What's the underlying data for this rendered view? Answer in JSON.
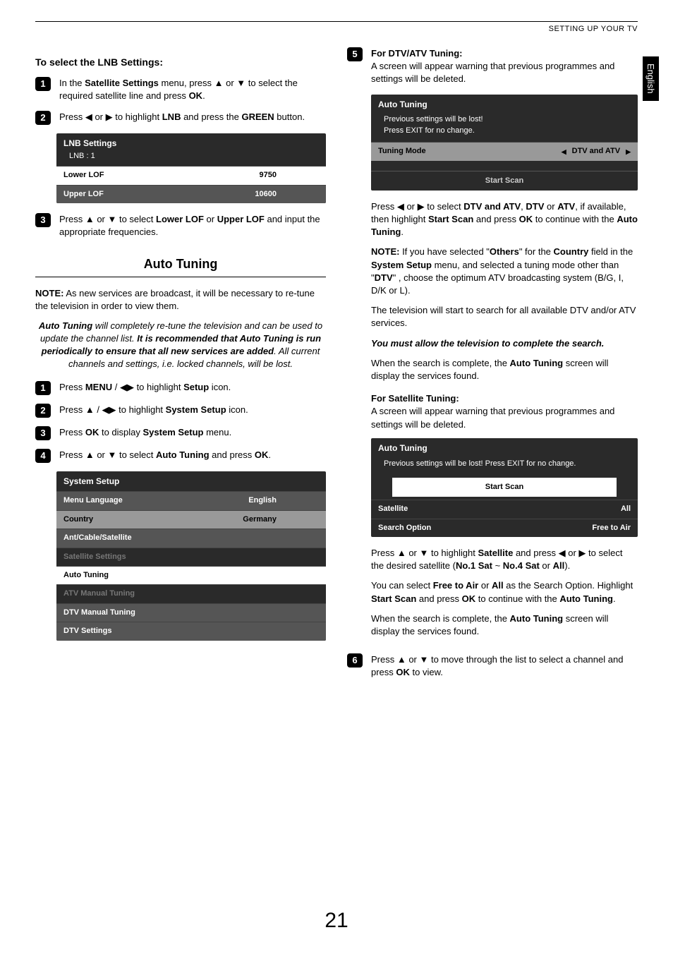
{
  "header": {
    "section": "SETTING UP YOUR TV",
    "lang_tab": "English"
  },
  "page_number": "21",
  "left": {
    "lnb_heading": "To select the LNB Settings:",
    "step1": {
      "pre": "In the ",
      "b1": "Satellite Settings",
      "mid": " menu, press ▲ or ▼ to select the required satellite line and press ",
      "b2": "OK",
      "post": "."
    },
    "step2": {
      "pre": "Press ◀ or ▶ to highlight ",
      "b1": "LNB",
      "mid": " and press the ",
      "b2": "GREEN",
      "post": " button."
    },
    "lnb_osd": {
      "title": "LNB Settings",
      "sub": "LNB : 1",
      "rows": [
        {
          "label": "Lower LOF",
          "value": "9750",
          "style": "white"
        },
        {
          "label": "Upper LOF",
          "value": "10600",
          "style": "dark"
        }
      ]
    },
    "step3": {
      "pre": "Press ▲ or ▼ to select ",
      "b1": "Lower LOF",
      "mid": " or ",
      "b2": "Upper LOF",
      "post": " and input the appropriate frequencies."
    },
    "auto_title": "Auto Tuning",
    "note": {
      "label": "NOTE:",
      "text": " As new services are broadcast, it will be necessary to re-tune the television in order to view them."
    },
    "italic_block": {
      "a": "Auto Tuning",
      "b": " will completely re-tune the television and can be used to update the channel list. ",
      "c": "It is recommended that Auto Tuning is run periodically to ensure that all new services are added",
      "d": ". All current channels and settings, i.e. locked channels, will be lost."
    },
    "at_step1": {
      "pre": "Press ",
      "b1": "MENU",
      "mid": " / ◀▶ to highlight ",
      "b2": "Setup",
      "post": " icon."
    },
    "at_step2": {
      "pre": "Press ▲ / ◀▶ to highlight ",
      "b1": "System Setup",
      "post": " icon."
    },
    "at_step3": {
      "pre": "Press ",
      "b1": "OK",
      "mid": " to display ",
      "b2": "System Setup",
      "post": " menu."
    },
    "at_step4": {
      "pre": "Press ▲ or ▼ to select ",
      "b1": "Auto Tuning",
      "mid": " and press ",
      "b2": "OK",
      "post": "."
    },
    "system_osd": {
      "title": "System Setup",
      "rows": [
        {
          "label": "Menu Language",
          "value": "English",
          "style": "dark"
        },
        {
          "label": "Country",
          "value": "Germany",
          "style": "light"
        },
        {
          "label": "Ant/Cable/Satellite",
          "value": "",
          "style": "dark"
        },
        {
          "label": "Satellite Settings",
          "value": "",
          "style": "disabled"
        },
        {
          "label": "Auto Tuning",
          "value": "",
          "style": "white"
        },
        {
          "label": "ATV Manual Tuning",
          "value": "",
          "style": "disabled"
        },
        {
          "label": "DTV Manual Tuning",
          "value": "",
          "style": "dark"
        },
        {
          "label": "DTV Settings",
          "value": "",
          "style": "dark"
        }
      ]
    }
  },
  "right": {
    "step5_heading": "For DTV/ATV Tuning:",
    "step5_intro": "A screen will appear warning that previous programmes and settings will be deleted.",
    "dtv_osd": {
      "title": "Auto Tuning",
      "note": "Previous settings will be lost!\nPress EXIT for no change.",
      "row": {
        "label": "Tuning Mode",
        "value": "DTV and ATV"
      },
      "button": "Start Scan"
    },
    "p1": {
      "pre": "Press ◀ or ▶ to select ",
      "b1": "DTV and ATV",
      "c1": ", ",
      "b2": "DTV",
      "c2": " or ",
      "b3": "ATV",
      "c3": ", if available, then highlight ",
      "b4": "Start Scan",
      "c4": " and press ",
      "b5": "OK",
      "c5": " to continue with the ",
      "b6": "Auto Tuning",
      "post": "."
    },
    "note2": {
      "label": "NOTE:",
      "a": " If you have selected \"",
      "b1": "Others",
      "b": "\" for the ",
      "b2": "Country",
      "c": " field in the ",
      "b3": "System Setup",
      "d": " menu, and selected a tuning mode other than \"",
      "b4": "DTV",
      "e": "\" , choose the optimum ATV broadcasting system (B/G, I, D/K or L)."
    },
    "p2": "The television will start to search for all available DTV and/or ATV services.",
    "p3": "You must allow the television to complete the search.",
    "p4": {
      "a": "When the search is complete, the ",
      "b": "Auto Tuning",
      "c": " screen will display the services found."
    },
    "sat_heading": "For Satellite Tuning:",
    "sat_intro": "A screen will appear warning that previous programmes and settings will be deleted.",
    "sat_osd": {
      "title": "Auto Tuning",
      "note": "Previous settings will be lost! Press EXIT for no change.",
      "button": "Start Scan",
      "rows": [
        {
          "label": "Satellite",
          "value": "All"
        },
        {
          "label": "Search Option",
          "value": "Free to Air"
        }
      ]
    },
    "sp1": {
      "a": "Press ▲ or ▼ to highlight ",
      "b1": "Satellite",
      "b": " and press ◀ or ▶ to select the desired satellite (",
      "b2": "No.1 Sat",
      "c": " ~ ",
      "b3": "No.4 Sat",
      "d": " or ",
      "b4": "All",
      "e": ")."
    },
    "sp2": {
      "a": "You can select ",
      "b1": "Free to Air",
      "b": " or ",
      "b2": "All",
      "c": " as the Search Option. Highlight ",
      "b3": "Start Scan",
      "d": " and press ",
      "b4": "OK",
      "e": " to continue with the ",
      "b5": "Auto Tuning",
      "f": "."
    },
    "sp3": {
      "a": "When the search is complete, the ",
      "b": "Auto Tuning",
      "c": " screen will display the services found."
    },
    "step6": {
      "a": "Press ▲ or ▼ to move through the list to select a channel and press ",
      "b": "OK",
      "c": " to view."
    }
  }
}
